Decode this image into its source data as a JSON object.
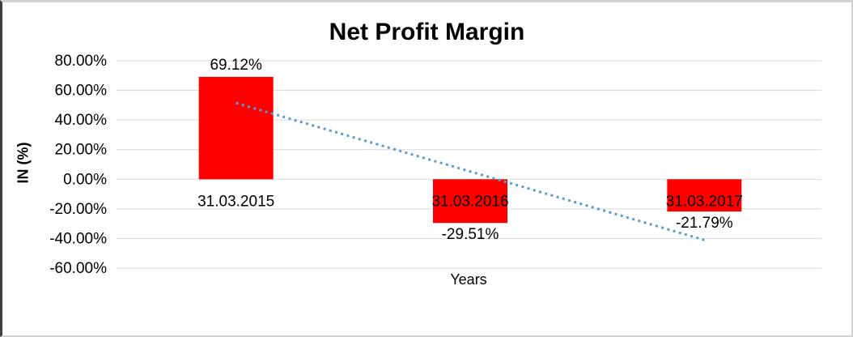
{
  "chart_data": {
    "type": "bar",
    "title": "Net Profit Margin",
    "xlabel": "Years",
    "ylabel": "IN (%)",
    "categories": [
      "31.03.2015",
      "31.03.2016",
      "31.03.2017"
    ],
    "values": [
      69.12,
      -29.51,
      -21.79
    ],
    "data_labels": [
      "69.12%",
      "-29.51%",
      "-21.79%"
    ],
    "y_axis": {
      "min": -60,
      "max": 80,
      "step": 20,
      "tick_labels": [
        "80.00%",
        "60.00%",
        "40.00%",
        "20.00%",
        "0.00%",
        "-20.00%",
        "-40.00%",
        "-60.00%"
      ]
    },
    "grid": true,
    "legend": "none",
    "bar_color": "#ff0000",
    "grid_color": "#d9d9d9",
    "text_color": "#000000",
    "trendline": {
      "type": "linear",
      "style": "dotted",
      "color": "#5b9bd5",
      "start_value": 51.5,
      "end_value": -41.0
    }
  }
}
